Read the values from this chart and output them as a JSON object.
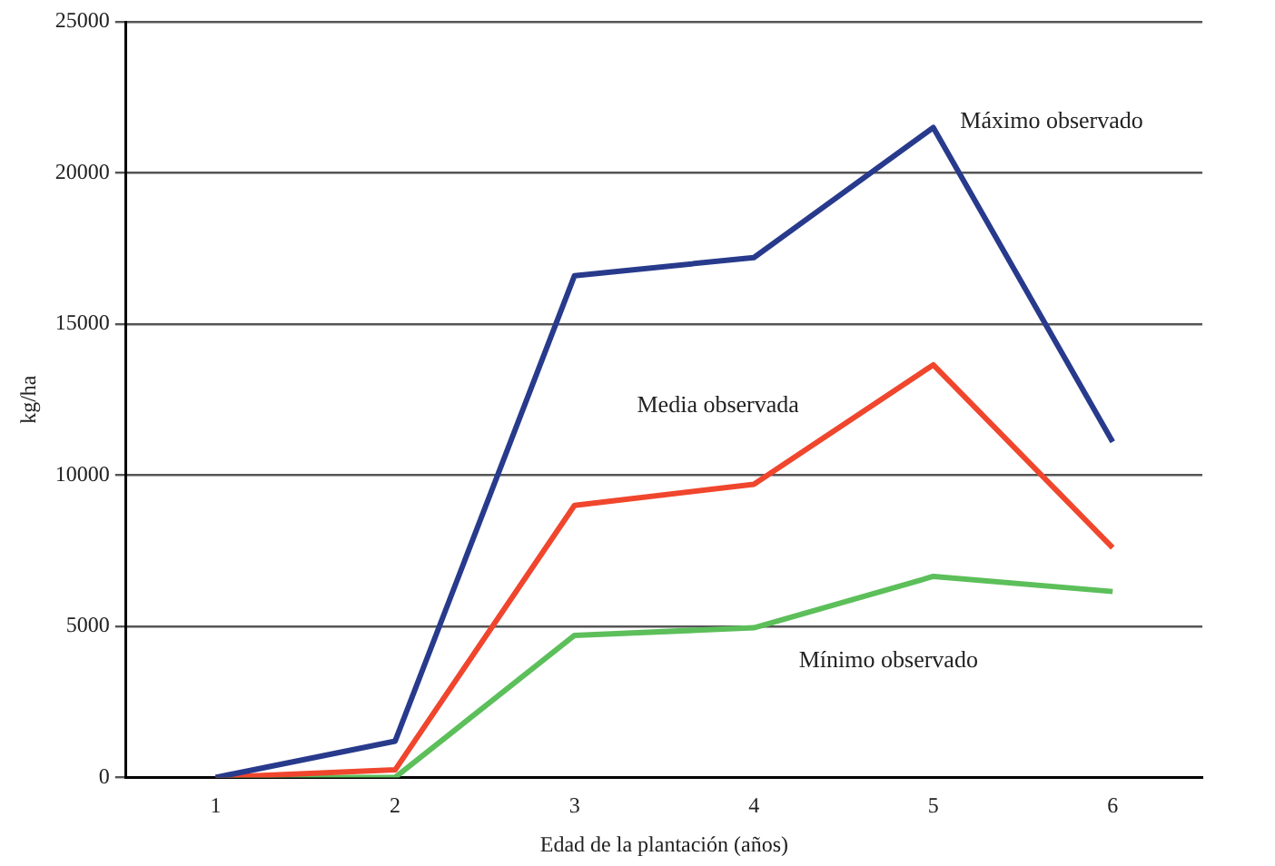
{
  "chart_data": {
    "type": "line",
    "xlabel": "Edad de la plantación (años)",
    "ylabel": "kg/ha",
    "categories": [
      "1",
      "2",
      "3",
      "4",
      "5",
      "6"
    ],
    "series": [
      {
        "name": "Máximo observado",
        "color": "#283a8c",
        "values": [
          0,
          1200,
          16600,
          17200,
          21500,
          11100
        ]
      },
      {
        "name": "Media observada",
        "color": "#f0462d",
        "values": [
          0,
          250,
          9000,
          9700,
          13650,
          7600
        ]
      },
      {
        "name": "Mínimo observado",
        "color": "#5cbf5a",
        "values": [
          0,
          0,
          4700,
          4950,
          6650,
          6150
        ]
      }
    ],
    "ylim": [
      0,
      25000
    ],
    "yticks": [
      0,
      5000,
      10000,
      15000,
      20000,
      25000
    ],
    "grid": "y",
    "legend": false,
    "marker": "none",
    "line_style": "solid"
  }
}
